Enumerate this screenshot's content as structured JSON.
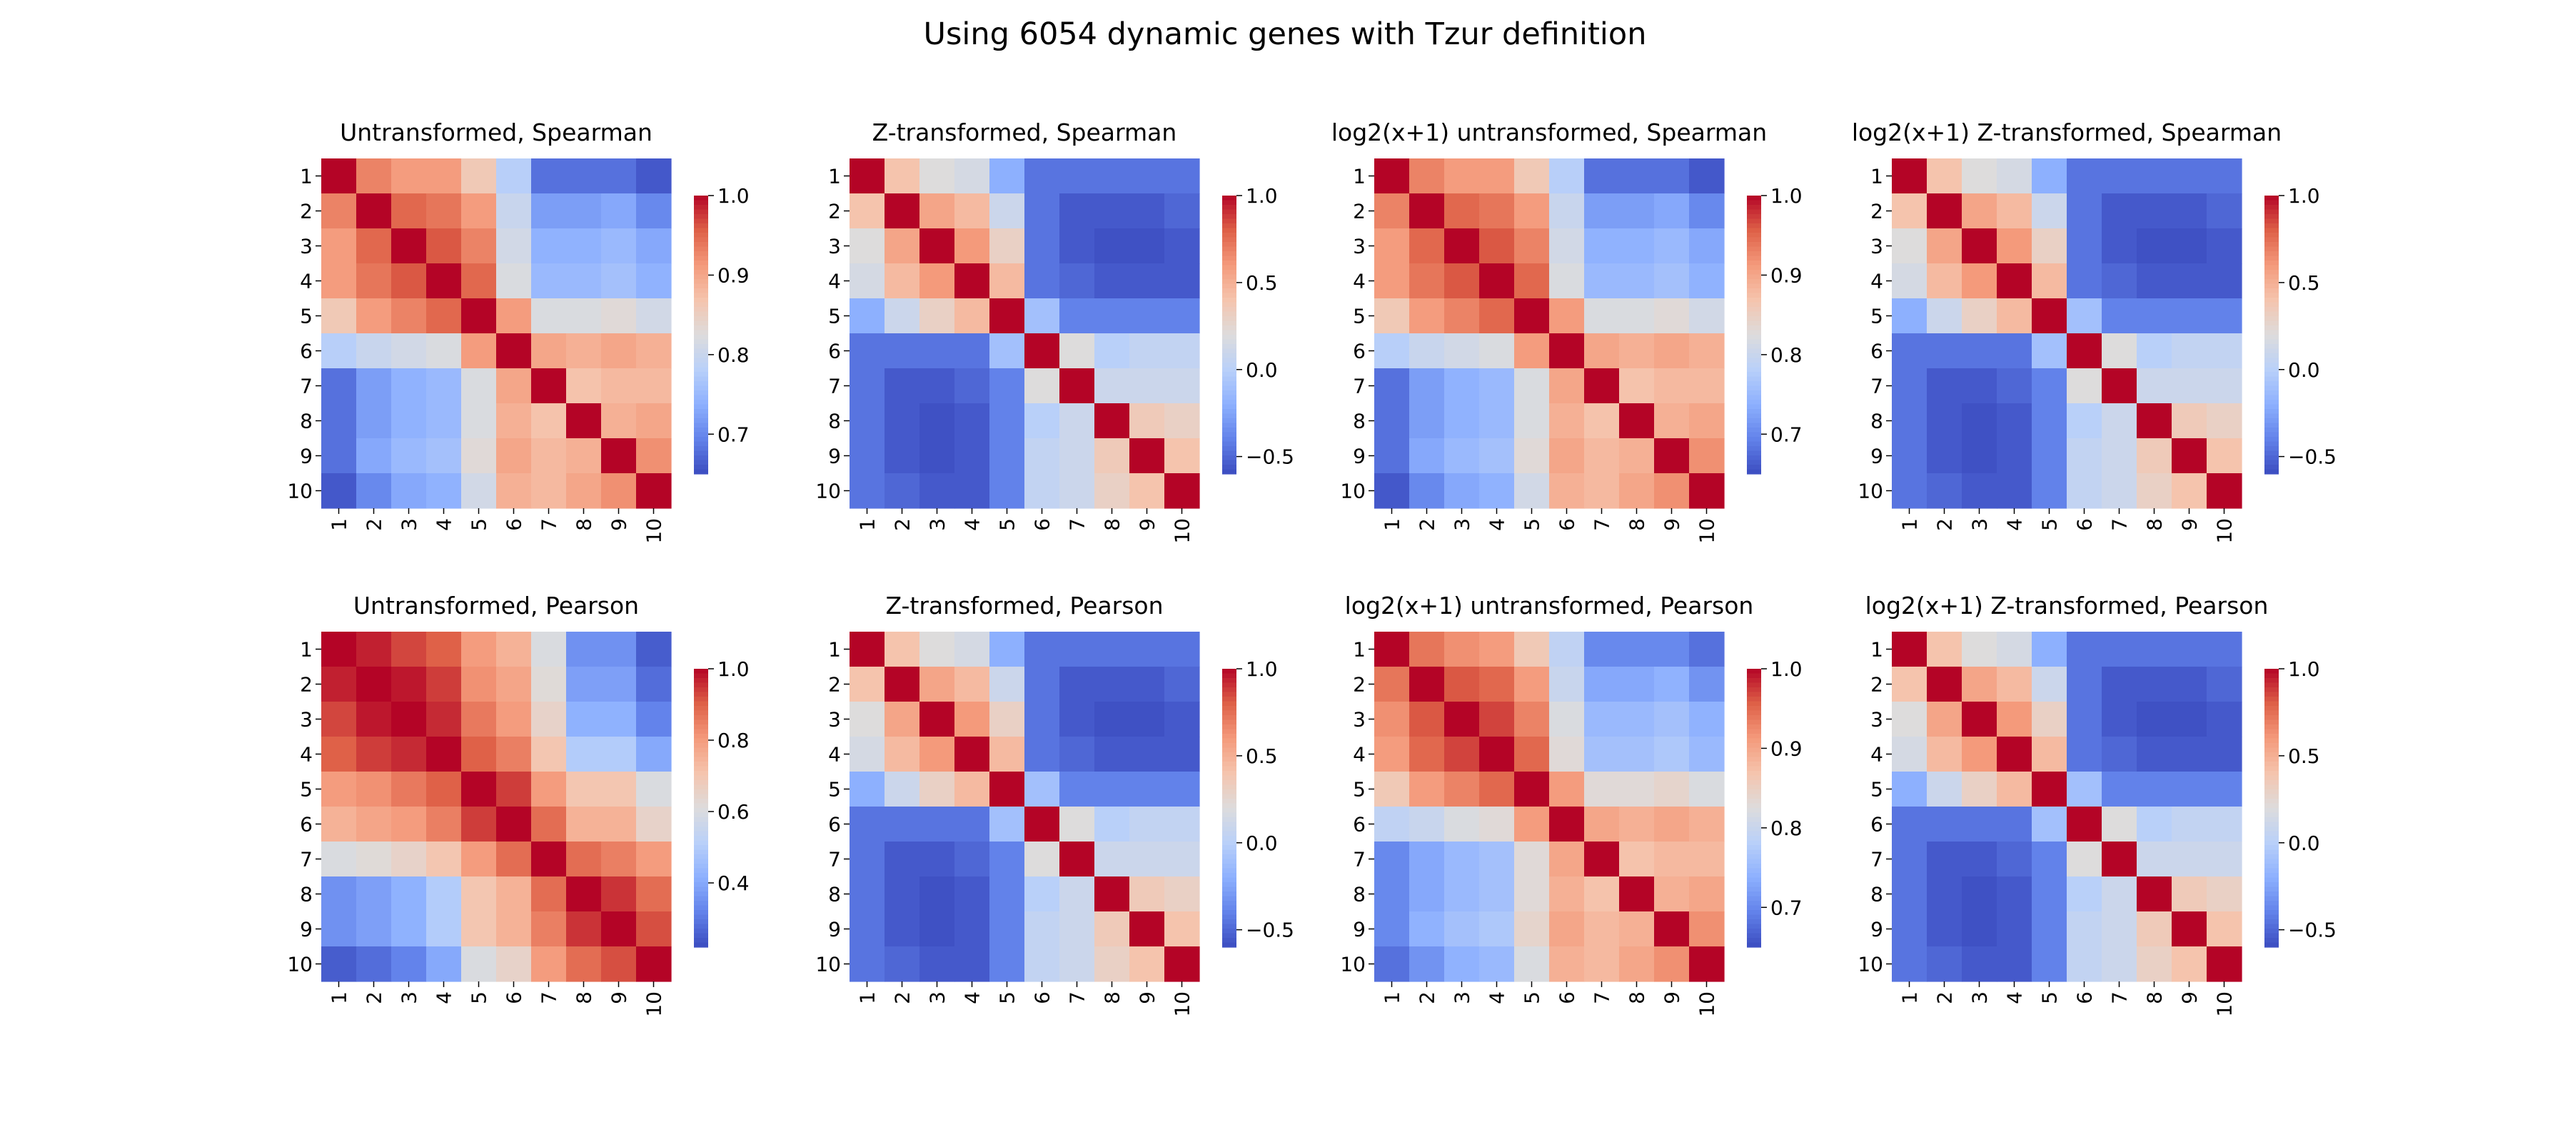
{
  "figure": {
    "title": "Using 6054 dynamic genes with Tzur definition"
  },
  "colormap": {
    "name": "coolwarm",
    "stops": [
      "#3b4cc0",
      "#6282ea",
      "#8db0fe",
      "#b9d0f9",
      "#dddcdc",
      "#f5c4ad",
      "#f49a7b",
      "#de6047",
      "#b40426"
    ]
  },
  "chart_data": [
    {
      "type": "heatmap",
      "title": "Untransformed, Spearman",
      "labels": [
        "1",
        "2",
        "3",
        "4",
        "5",
        "6",
        "7",
        "8",
        "9",
        "10"
      ],
      "vmin": 0.65,
      "vmax": 1.0,
      "colorbar_ticks": [
        {
          "value": 0.7,
          "label": "0.7"
        },
        {
          "value": 0.8,
          "label": "0.8"
        },
        {
          "value": 0.9,
          "label": "0.9"
        },
        {
          "value": 1.0,
          "label": "1.0"
        }
      ],
      "matrix": [
        [
          1.0,
          0.93,
          0.91,
          0.91,
          0.86,
          0.78,
          0.68,
          0.68,
          0.68,
          0.66
        ],
        [
          0.93,
          1.0,
          0.95,
          0.94,
          0.91,
          0.8,
          0.72,
          0.72,
          0.73,
          0.7
        ],
        [
          0.91,
          0.95,
          1.0,
          0.96,
          0.93,
          0.81,
          0.74,
          0.74,
          0.75,
          0.73
        ],
        [
          0.91,
          0.94,
          0.96,
          1.0,
          0.95,
          0.82,
          0.75,
          0.75,
          0.76,
          0.74
        ],
        [
          0.86,
          0.91,
          0.93,
          0.95,
          1.0,
          0.91,
          0.82,
          0.82,
          0.83,
          0.81
        ],
        [
          0.78,
          0.8,
          0.81,
          0.82,
          0.91,
          1.0,
          0.9,
          0.89,
          0.9,
          0.89
        ],
        [
          0.68,
          0.72,
          0.74,
          0.75,
          0.82,
          0.9,
          1.0,
          0.87,
          0.88,
          0.88
        ],
        [
          0.68,
          0.72,
          0.74,
          0.75,
          0.82,
          0.89,
          0.87,
          1.0,
          0.89,
          0.9
        ],
        [
          0.68,
          0.73,
          0.75,
          0.76,
          0.83,
          0.9,
          0.88,
          0.89,
          1.0,
          0.92
        ],
        [
          0.66,
          0.7,
          0.73,
          0.74,
          0.81,
          0.89,
          0.88,
          0.9,
          0.92,
          1.0
        ]
      ]
    },
    {
      "type": "heatmap",
      "title": "Z-transformed, Spearman",
      "labels": [
        "1",
        "2",
        "3",
        "4",
        "5",
        "6",
        "7",
        "8",
        "9",
        "10"
      ],
      "vmin": -0.6,
      "vmax": 1.0,
      "colorbar_ticks": [
        {
          "value": -0.5,
          "label": "−0.5"
        },
        {
          "value": 0.0,
          "label": "0.0"
        },
        {
          "value": 0.5,
          "label": "0.5"
        },
        {
          "value": 1.0,
          "label": "1.0"
        }
      ],
      "matrix": [
        [
          1.0,
          0.4,
          0.2,
          0.15,
          -0.2,
          -0.45,
          -0.45,
          -0.45,
          -0.45,
          -0.45
        ],
        [
          0.4,
          1.0,
          0.55,
          0.45,
          0.1,
          -0.45,
          -0.55,
          -0.55,
          -0.55,
          -0.5
        ],
        [
          0.2,
          0.55,
          1.0,
          0.6,
          0.3,
          -0.45,
          -0.55,
          -0.58,
          -0.58,
          -0.55
        ],
        [
          0.15,
          0.45,
          0.6,
          1.0,
          0.45,
          -0.45,
          -0.5,
          -0.55,
          -0.55,
          -0.55
        ],
        [
          -0.2,
          0.1,
          0.3,
          0.45,
          1.0,
          -0.1,
          -0.4,
          -0.4,
          -0.4,
          -0.4
        ],
        [
          -0.45,
          -0.45,
          -0.45,
          -0.45,
          -0.1,
          1.0,
          0.2,
          0.0,
          0.05,
          0.05
        ],
        [
          -0.45,
          -0.55,
          -0.55,
          -0.5,
          -0.4,
          0.2,
          1.0,
          0.1,
          0.1,
          0.1
        ],
        [
          -0.45,
          -0.55,
          -0.58,
          -0.55,
          -0.4,
          0.0,
          0.1,
          1.0,
          0.35,
          0.3
        ],
        [
          -0.45,
          -0.55,
          -0.58,
          -0.55,
          -0.4,
          0.05,
          0.1,
          0.35,
          1.0,
          0.4
        ],
        [
          -0.45,
          -0.5,
          -0.55,
          -0.55,
          -0.4,
          0.05,
          0.1,
          0.3,
          0.4,
          1.0
        ]
      ]
    },
    {
      "type": "heatmap",
      "title": "log2(x+1) untransformed, Spearman",
      "labels": [
        "1",
        "2",
        "3",
        "4",
        "5",
        "6",
        "7",
        "8",
        "9",
        "10"
      ],
      "vmin": 0.65,
      "vmax": 1.0,
      "colorbar_ticks": [
        {
          "value": 0.7,
          "label": "0.7"
        },
        {
          "value": 0.8,
          "label": "0.8"
        },
        {
          "value": 0.9,
          "label": "0.9"
        },
        {
          "value": 1.0,
          "label": "1.0"
        }
      ],
      "matrix": [
        [
          1.0,
          0.93,
          0.91,
          0.91,
          0.86,
          0.78,
          0.68,
          0.68,
          0.68,
          0.66
        ],
        [
          0.93,
          1.0,
          0.95,
          0.94,
          0.91,
          0.8,
          0.72,
          0.72,
          0.73,
          0.7
        ],
        [
          0.91,
          0.95,
          1.0,
          0.96,
          0.93,
          0.81,
          0.74,
          0.74,
          0.75,
          0.73
        ],
        [
          0.91,
          0.94,
          0.96,
          1.0,
          0.95,
          0.82,
          0.75,
          0.75,
          0.76,
          0.74
        ],
        [
          0.86,
          0.91,
          0.93,
          0.95,
          1.0,
          0.91,
          0.82,
          0.82,
          0.83,
          0.81
        ],
        [
          0.78,
          0.8,
          0.81,
          0.82,
          0.91,
          1.0,
          0.9,
          0.89,
          0.9,
          0.89
        ],
        [
          0.68,
          0.72,
          0.74,
          0.75,
          0.82,
          0.9,
          1.0,
          0.87,
          0.88,
          0.88
        ],
        [
          0.68,
          0.72,
          0.74,
          0.75,
          0.82,
          0.89,
          0.87,
          1.0,
          0.89,
          0.9
        ],
        [
          0.68,
          0.73,
          0.75,
          0.76,
          0.83,
          0.9,
          0.88,
          0.89,
          1.0,
          0.92
        ],
        [
          0.66,
          0.7,
          0.73,
          0.74,
          0.81,
          0.89,
          0.88,
          0.9,
          0.92,
          1.0
        ]
      ]
    },
    {
      "type": "heatmap",
      "title": "log2(x+1) Z-transformed, Spearman",
      "labels": [
        "1",
        "2",
        "3",
        "4",
        "5",
        "6",
        "7",
        "8",
        "9",
        "10"
      ],
      "vmin": -0.6,
      "vmax": 1.0,
      "colorbar_ticks": [
        {
          "value": -0.5,
          "label": "−0.5"
        },
        {
          "value": 0.0,
          "label": "0.0"
        },
        {
          "value": 0.5,
          "label": "0.5"
        },
        {
          "value": 1.0,
          "label": "1.0"
        }
      ],
      "matrix": [
        [
          1.0,
          0.4,
          0.2,
          0.15,
          -0.2,
          -0.45,
          -0.45,
          -0.45,
          -0.45,
          -0.45
        ],
        [
          0.4,
          1.0,
          0.55,
          0.45,
          0.1,
          -0.45,
          -0.55,
          -0.55,
          -0.55,
          -0.5
        ],
        [
          0.2,
          0.55,
          1.0,
          0.6,
          0.3,
          -0.45,
          -0.55,
          -0.58,
          -0.58,
          -0.55
        ],
        [
          0.15,
          0.45,
          0.6,
          1.0,
          0.45,
          -0.45,
          -0.5,
          -0.55,
          -0.55,
          -0.55
        ],
        [
          -0.2,
          0.1,
          0.3,
          0.45,
          1.0,
          -0.1,
          -0.4,
          -0.4,
          -0.4,
          -0.4
        ],
        [
          -0.45,
          -0.45,
          -0.45,
          -0.45,
          -0.1,
          1.0,
          0.2,
          0.0,
          0.05,
          0.05
        ],
        [
          -0.45,
          -0.55,
          -0.55,
          -0.5,
          -0.4,
          0.2,
          1.0,
          0.1,
          0.1,
          0.1
        ],
        [
          -0.45,
          -0.55,
          -0.58,
          -0.55,
          -0.4,
          0.0,
          0.1,
          1.0,
          0.35,
          0.3
        ],
        [
          -0.45,
          -0.55,
          -0.58,
          -0.55,
          -0.4,
          0.05,
          0.1,
          0.35,
          1.0,
          0.4
        ],
        [
          -0.45,
          -0.5,
          -0.55,
          -0.55,
          -0.4,
          0.05,
          0.1,
          0.3,
          0.4,
          1.0
        ]
      ]
    },
    {
      "type": "heatmap",
      "title": "Untransformed, Pearson",
      "labels": [
        "1",
        "2",
        "3",
        "4",
        "5",
        "6",
        "7",
        "8",
        "9",
        "10"
      ],
      "vmin": 0.22,
      "vmax": 1.0,
      "colorbar_ticks": [
        {
          "value": 0.4,
          "label": "0.4"
        },
        {
          "value": 0.6,
          "label": "0.6"
        },
        {
          "value": 0.8,
          "label": "0.8"
        },
        {
          "value": 1.0,
          "label": "1.0"
        }
      ],
      "matrix": [
        [
          1.0,
          0.97,
          0.93,
          0.9,
          0.8,
          0.75,
          0.6,
          0.35,
          0.35,
          0.25
        ],
        [
          0.97,
          1.0,
          0.98,
          0.94,
          0.82,
          0.78,
          0.62,
          0.38,
          0.38,
          0.28
        ],
        [
          0.93,
          0.98,
          1.0,
          0.96,
          0.86,
          0.8,
          0.65,
          0.42,
          0.42,
          0.32
        ],
        [
          0.9,
          0.94,
          0.96,
          1.0,
          0.9,
          0.85,
          0.7,
          0.5,
          0.5,
          0.4
        ],
        [
          0.8,
          0.82,
          0.86,
          0.9,
          1.0,
          0.94,
          0.8,
          0.7,
          0.7,
          0.6
        ],
        [
          0.75,
          0.78,
          0.8,
          0.85,
          0.94,
          1.0,
          0.88,
          0.75,
          0.75,
          0.65
        ],
        [
          0.6,
          0.62,
          0.65,
          0.7,
          0.8,
          0.88,
          1.0,
          0.88,
          0.85,
          0.8
        ],
        [
          0.35,
          0.38,
          0.42,
          0.5,
          0.7,
          0.75,
          0.88,
          1.0,
          0.95,
          0.88
        ],
        [
          0.35,
          0.38,
          0.42,
          0.5,
          0.7,
          0.75,
          0.85,
          0.95,
          1.0,
          0.92
        ],
        [
          0.25,
          0.28,
          0.32,
          0.4,
          0.6,
          0.65,
          0.8,
          0.88,
          0.92,
          1.0
        ]
      ]
    },
    {
      "type": "heatmap",
      "title": "Z-transformed, Pearson",
      "labels": [
        "1",
        "2",
        "3",
        "4",
        "5",
        "6",
        "7",
        "8",
        "9",
        "10"
      ],
      "vmin": -0.6,
      "vmax": 1.0,
      "colorbar_ticks": [
        {
          "value": -0.5,
          "label": "−0.5"
        },
        {
          "value": 0.0,
          "label": "0.0"
        },
        {
          "value": 0.5,
          "label": "0.5"
        },
        {
          "value": 1.0,
          "label": "1.0"
        }
      ],
      "matrix": [
        [
          1.0,
          0.4,
          0.2,
          0.15,
          -0.2,
          -0.45,
          -0.45,
          -0.45,
          -0.45,
          -0.45
        ],
        [
          0.4,
          1.0,
          0.55,
          0.45,
          0.1,
          -0.45,
          -0.55,
          -0.55,
          -0.55,
          -0.5
        ],
        [
          0.2,
          0.55,
          1.0,
          0.6,
          0.3,
          -0.45,
          -0.55,
          -0.58,
          -0.58,
          -0.55
        ],
        [
          0.15,
          0.45,
          0.6,
          1.0,
          0.45,
          -0.45,
          -0.5,
          -0.55,
          -0.55,
          -0.55
        ],
        [
          -0.2,
          0.1,
          0.3,
          0.45,
          1.0,
          -0.1,
          -0.4,
          -0.4,
          -0.4,
          -0.4
        ],
        [
          -0.45,
          -0.45,
          -0.45,
          -0.45,
          -0.1,
          1.0,
          0.2,
          0.0,
          0.05,
          0.05
        ],
        [
          -0.45,
          -0.55,
          -0.55,
          -0.5,
          -0.4,
          0.2,
          1.0,
          0.1,
          0.1,
          0.1
        ],
        [
          -0.45,
          -0.55,
          -0.58,
          -0.55,
          -0.4,
          0.0,
          0.1,
          1.0,
          0.35,
          0.3
        ],
        [
          -0.45,
          -0.55,
          -0.58,
          -0.55,
          -0.4,
          0.05,
          0.1,
          0.35,
          1.0,
          0.4
        ],
        [
          -0.45,
          -0.5,
          -0.55,
          -0.55,
          -0.4,
          0.05,
          0.1,
          0.3,
          0.4,
          1.0
        ]
      ]
    },
    {
      "type": "heatmap",
      "title": "log2(x+1) untransformed, Pearson",
      "labels": [
        "1",
        "2",
        "3",
        "4",
        "5",
        "6",
        "7",
        "8",
        "9",
        "10"
      ],
      "vmin": 0.65,
      "vmax": 1.0,
      "colorbar_ticks": [
        {
          "value": 0.7,
          "label": "0.7"
        },
        {
          "value": 0.8,
          "label": "0.8"
        },
        {
          "value": 0.9,
          "label": "0.9"
        },
        {
          "value": 1.0,
          "label": "1.0"
        }
      ],
      "matrix": [
        [
          1.0,
          0.94,
          0.92,
          0.91,
          0.86,
          0.79,
          0.7,
          0.7,
          0.7,
          0.68
        ],
        [
          0.94,
          1.0,
          0.96,
          0.95,
          0.91,
          0.8,
          0.73,
          0.73,
          0.74,
          0.71
        ],
        [
          0.92,
          0.96,
          1.0,
          0.97,
          0.93,
          0.82,
          0.75,
          0.75,
          0.76,
          0.74
        ],
        [
          0.91,
          0.95,
          0.97,
          1.0,
          0.95,
          0.83,
          0.76,
          0.76,
          0.77,
          0.75
        ],
        [
          0.86,
          0.91,
          0.93,
          0.95,
          1.0,
          0.91,
          0.83,
          0.83,
          0.84,
          0.82
        ],
        [
          0.79,
          0.8,
          0.82,
          0.83,
          0.91,
          1.0,
          0.9,
          0.89,
          0.9,
          0.89
        ],
        [
          0.7,
          0.73,
          0.75,
          0.76,
          0.83,
          0.9,
          1.0,
          0.87,
          0.88,
          0.88
        ],
        [
          0.7,
          0.73,
          0.75,
          0.76,
          0.83,
          0.89,
          0.87,
          1.0,
          0.89,
          0.9
        ],
        [
          0.7,
          0.74,
          0.76,
          0.77,
          0.84,
          0.9,
          0.88,
          0.89,
          1.0,
          0.92
        ],
        [
          0.68,
          0.71,
          0.74,
          0.75,
          0.82,
          0.89,
          0.88,
          0.9,
          0.92,
          1.0
        ]
      ]
    },
    {
      "type": "heatmap",
      "title": "log2(x+1) Z-transformed, Pearson",
      "labels": [
        "1",
        "2",
        "3",
        "4",
        "5",
        "6",
        "7",
        "8",
        "9",
        "10"
      ],
      "vmin": -0.6,
      "vmax": 1.0,
      "colorbar_ticks": [
        {
          "value": -0.5,
          "label": "−0.5"
        },
        {
          "value": 0.0,
          "label": "0.0"
        },
        {
          "value": 0.5,
          "label": "0.5"
        },
        {
          "value": 1.0,
          "label": "1.0"
        }
      ],
      "matrix": [
        [
          1.0,
          0.4,
          0.2,
          0.15,
          -0.2,
          -0.45,
          -0.45,
          -0.45,
          -0.45,
          -0.45
        ],
        [
          0.4,
          1.0,
          0.55,
          0.45,
          0.1,
          -0.45,
          -0.55,
          -0.55,
          -0.55,
          -0.5
        ],
        [
          0.2,
          0.55,
          1.0,
          0.6,
          0.3,
          -0.45,
          -0.55,
          -0.58,
          -0.58,
          -0.55
        ],
        [
          0.15,
          0.45,
          0.6,
          1.0,
          0.45,
          -0.45,
          -0.5,
          -0.55,
          -0.55,
          -0.55
        ],
        [
          -0.2,
          0.1,
          0.3,
          0.45,
          1.0,
          -0.1,
          -0.4,
          -0.4,
          -0.4,
          -0.4
        ],
        [
          -0.45,
          -0.45,
          -0.45,
          -0.45,
          -0.1,
          1.0,
          0.2,
          0.0,
          0.05,
          0.05
        ],
        [
          -0.45,
          -0.55,
          -0.55,
          -0.5,
          -0.4,
          0.2,
          1.0,
          0.1,
          0.1,
          0.1
        ],
        [
          -0.45,
          -0.55,
          -0.58,
          -0.55,
          -0.4,
          0.0,
          0.1,
          1.0,
          0.35,
          0.3
        ],
        [
          -0.45,
          -0.55,
          -0.58,
          -0.55,
          -0.4,
          0.05,
          0.1,
          0.35,
          1.0,
          0.4
        ],
        [
          -0.45,
          -0.5,
          -0.55,
          -0.55,
          -0.4,
          0.05,
          0.1,
          0.3,
          0.4,
          1.0
        ]
      ]
    }
  ]
}
